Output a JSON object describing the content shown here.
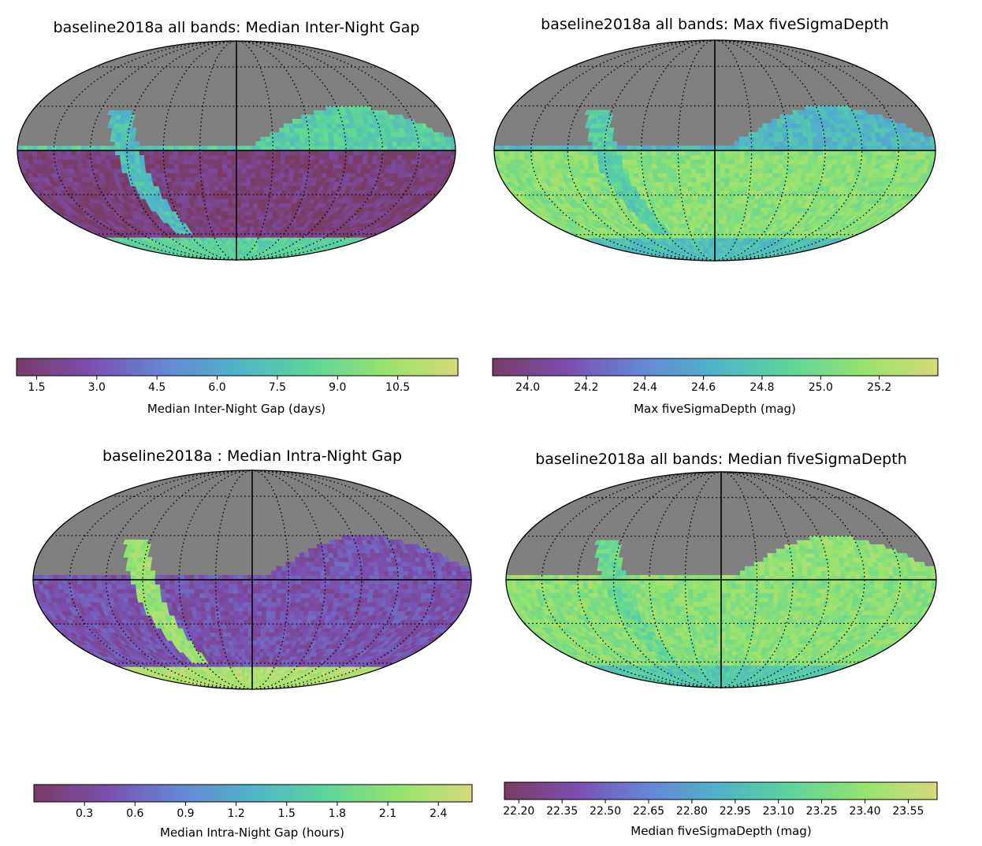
{
  "colors": {
    "masked": "#808080",
    "colormap": [
      "#7a3b64",
      "#7b4fb0",
      "#6586d6",
      "#4fb4c8",
      "#5dd59a",
      "#95e36e",
      "#d8d97a"
    ]
  },
  "chart_data": [
    {
      "type": "heatmap",
      "projection": "mollweide",
      "title": "baseline2018a all bands: Median Inter-Night Gap",
      "colorbar_label": "Median Inter-Night Gap (days)",
      "ticks": [
        "1.5",
        "3.0",
        "4.5",
        "6.0",
        "7.5",
        "9.0",
        "10.5"
      ],
      "tick_values": [
        1.5,
        3.0,
        4.5,
        6.0,
        7.5,
        9.0,
        10.5
      ],
      "range": [
        1.0,
        12.0
      ],
      "regions": {
        "north": 0.63,
        "south": 0.05,
        "plane": 0.55,
        "pole": 0.65
      }
    },
    {
      "type": "heatmap",
      "projection": "mollweide",
      "title": "baseline2018a all bands: Max fiveSigmaDepth",
      "colorbar_label": "Max fiveSigmaDepth (mag)",
      "ticks": [
        "24.0",
        "24.2",
        "24.4",
        "24.6",
        "24.8",
        "25.0",
        "25.2"
      ],
      "tick_values": [
        24.0,
        24.2,
        24.4,
        24.6,
        24.8,
        25.0,
        25.2
      ],
      "range": [
        23.88,
        25.4
      ],
      "regions": {
        "north": 0.52,
        "south": 0.8,
        "plane": 0.62,
        "pole": 0.55
      }
    },
    {
      "type": "heatmap",
      "projection": "mollweide",
      "title": "baseline2018a : Median Intra-Night Gap",
      "colorbar_label": "Median Intra-Night Gap (hours)",
      "ticks": [
        "0.3",
        "0.6",
        "0.9",
        "1.2",
        "1.5",
        "1.8",
        "2.1",
        "2.4"
      ],
      "tick_values": [
        0.3,
        0.6,
        0.9,
        1.2,
        1.5,
        1.8,
        2.1,
        2.4
      ],
      "range": [
        0.0,
        2.6
      ],
      "regions": {
        "north": 0.18,
        "south": 0.17,
        "plane": 0.85,
        "pole": 0.9
      }
    },
    {
      "type": "heatmap",
      "projection": "mollweide",
      "title": "baseline2018a all bands: Median fiveSigmaDepth",
      "colorbar_label": "Median fiveSigmaDepth (mag)",
      "ticks": [
        "22.20",
        "22.35",
        "22.50",
        "22.65",
        "22.80",
        "22.95",
        "23.10",
        "23.25",
        "23.40",
        "23.55"
      ],
      "tick_values": [
        22.2,
        22.35,
        22.5,
        22.65,
        22.8,
        22.95,
        23.1,
        23.25,
        23.4,
        23.55
      ],
      "range": [
        22.15,
        23.65
      ],
      "regions": {
        "north": 0.82,
        "south": 0.8,
        "plane": 0.7,
        "pole": 0.6
      }
    }
  ]
}
